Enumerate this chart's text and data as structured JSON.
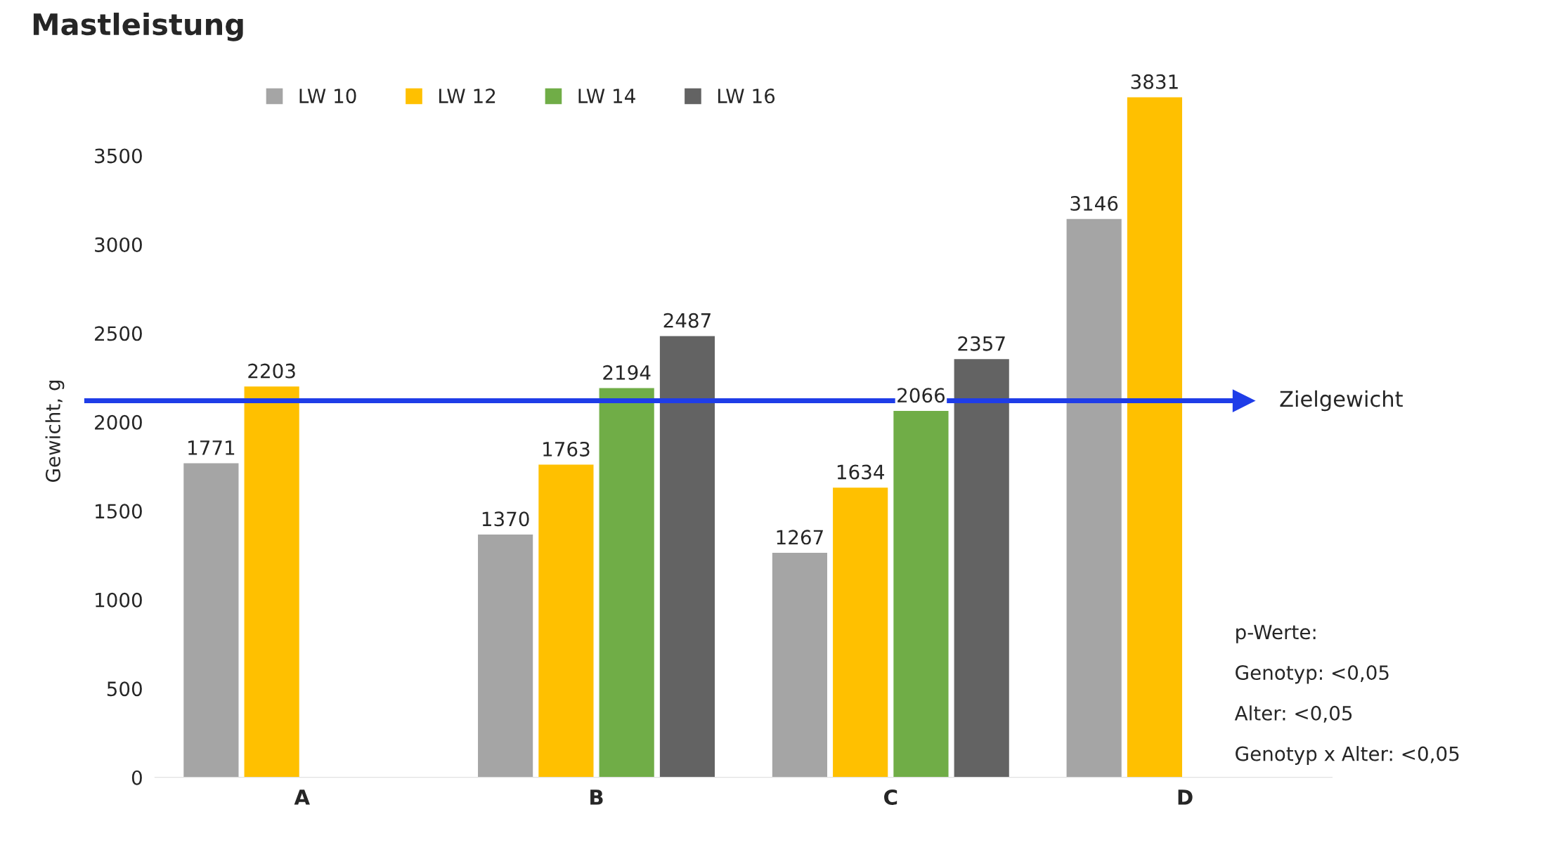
{
  "chart_data": {
    "type": "bar",
    "title": "Mastleistung",
    "ylabel": "Gewicht, g",
    "categories": [
      "A",
      "B",
      "C",
      "D"
    ],
    "series": [
      {
        "name": "LW 10",
        "color": "#a5a5a5",
        "values": [
          1771,
          1370,
          1267,
          3146
        ]
      },
      {
        "name": "LW 12",
        "color": "#ffc000",
        "values": [
          2203,
          1763,
          1634,
          3831
        ]
      },
      {
        "name": "LW 14",
        "color": "#70ad47",
        "values": [
          null,
          2194,
          2066,
          null
        ]
      },
      {
        "name": "LW 16",
        "color": "#636363",
        "values": [
          null,
          2487,
          2357,
          null
        ]
      }
    ],
    "ylim": [
      0,
      3900
    ],
    "yticks": [
      0,
      500,
      1000,
      1500,
      2000,
      2500,
      3000,
      3500
    ],
    "data_labels": true,
    "legend": "top left",
    "grid": false,
    "ref_lines": [
      {
        "axis": "y",
        "value": 2120,
        "label": "Zielgewicht",
        "color": "#1f3de8"
      }
    ],
    "annotations": [
      "p-Werte:",
      "Genotyp: <0,05",
      "Alter: <0,05",
      "Genotyp x Alter: <0,05"
    ]
  }
}
